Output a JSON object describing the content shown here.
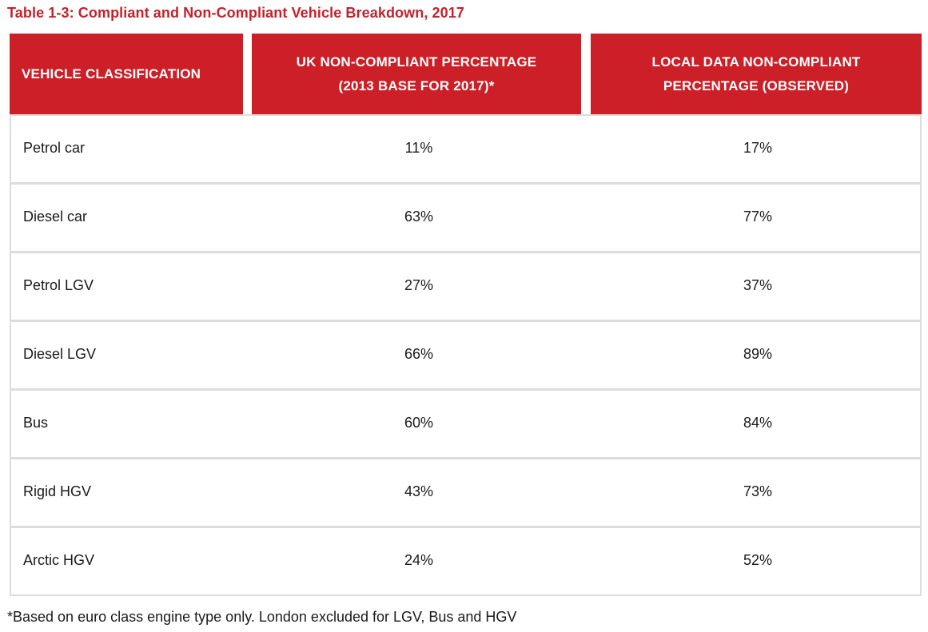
{
  "title": "Table 1-3: Compliant and Non-Compliant Vehicle Breakdown, 2017",
  "headers": [
    "VEHICLE CLASSIFICATION",
    "UK NON-COMPLIANT PERCENTAGE\n(2013 BASE FOR 2017)*",
    "LOCAL DATA NON-COMPLIANT\nPERCENTAGE (OBSERVED)"
  ],
  "rows": [
    {
      "vehicle": "Petrol car",
      "uk": "11%",
      "local": "17%"
    },
    {
      "vehicle": "Diesel car",
      "uk": "63%",
      "local": "77%"
    },
    {
      "vehicle": "Petrol LGV",
      "uk": "27%",
      "local": "37%"
    },
    {
      "vehicle": "Diesel LGV",
      "uk": "66%",
      "local": "89%"
    },
    {
      "vehicle": "Bus",
      "uk": "60%",
      "local": "84%"
    },
    {
      "vehicle": "Rigid HGV",
      "uk": "43%",
      "local": "73%"
    },
    {
      "vehicle": "Arctic HGV",
      "uk": "24%",
      "local": "52%"
    }
  ],
  "footnote": "*Based on euro class engine type only. London excluded for LGV, Bus and HGV",
  "colors": {
    "header_bg": "#cc1f27",
    "title": "#c8202a",
    "row_border": "#dcdcdc"
  }
}
